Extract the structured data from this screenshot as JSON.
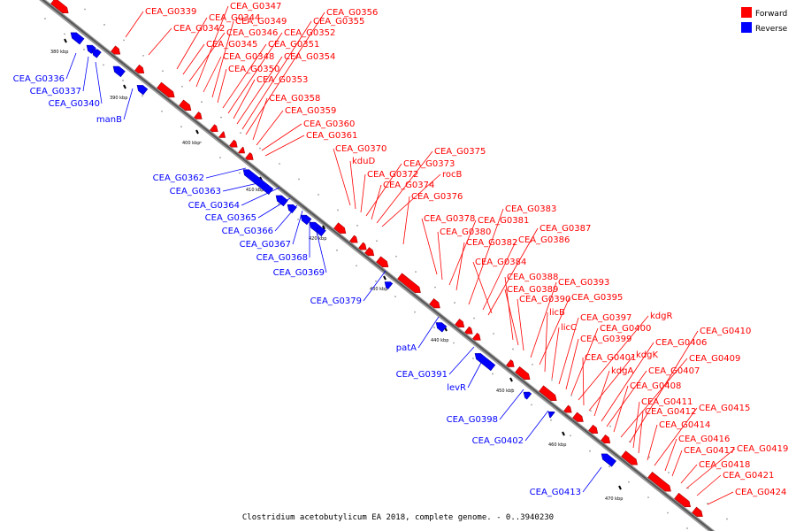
{
  "caption": "Clostridium acetobutylicum EA 2018, complete genome. - 0..3940230",
  "legend": [
    {
      "label": "Forward",
      "color": "#ff0000"
    },
    {
      "label": "Reverse",
      "color": "#0000ff"
    }
  ],
  "ticks": [
    "380 kbp",
    "390 kbp",
    "400 kbp",
    "410 kbp",
    "420 kbp",
    "430 kbp",
    "440 kbp",
    "450 kbp",
    "460 kbp",
    "470 kbp"
  ],
  "forward_genes": [
    "CEA_G0339",
    "CEA_G0342",
    "CEA_G0344",
    "CEA_G0345",
    "CEA_G0346",
    "CEA_G0347",
    "CEA_G0348",
    "CEA_G0349",
    "CEA_G0350",
    "CEA_G0351",
    "CEA_G0352",
    "CEA_G0353",
    "CEA_G0354",
    "CEA_G0355",
    "CEA_G0356",
    "CEA_G0358",
    "CEA_G0359",
    "CEA_G0360",
    "CEA_G0361",
    "CEA_G0370",
    "kduD",
    "CEA_G0372",
    "CEA_G0373",
    "CEA_G0374",
    "CEA_G0375",
    "rocB",
    "CEA_G0376",
    "CEA_G0378",
    "CEA_G0380",
    "CEA_G0381",
    "CEA_G0382",
    "CEA_G0383",
    "CEA_G0384",
    "CEA_G0386",
    "CEA_G0387",
    "CEA_G0388",
    "CEA_G0389",
    "CEA_G0390",
    "CEA_G0393",
    "CEA_G0395",
    "licB",
    "licC",
    "CEA_G0397",
    "CEA_G0399",
    "CEA_G0400",
    "kdgR",
    "CEA_G0401",
    "kdgK",
    "kdgA",
    "CEA_G0406",
    "CEA_G0407",
    "CEA_G0408",
    "CEA_G0409",
    "CEA_G0410",
    "CEA_G0411",
    "CEA_G0412",
    "CEA_G0414",
    "CEA_G0415",
    "CEA_G0416",
    "CEA_G0417",
    "CEA_G0418",
    "CEA_G0419",
    "CEA_G0421",
    "CEA_G0424"
  ],
  "reverse_genes": [
    "CEA_G0336",
    "CEA_G0337",
    "CEA_G0340",
    "manB",
    "CEA_G0362",
    "CEA_G0363",
    "CEA_G0364",
    "CEA_G0365",
    "CEA_G0366",
    "CEA_G0367",
    "CEA_G0368",
    "CEA_G0369",
    "CEA_G0379",
    "patA",
    "CEA_G0391",
    "levR",
    "CEA_G0398",
    "CEA_G0402",
    "CEA_G0413"
  ]
}
